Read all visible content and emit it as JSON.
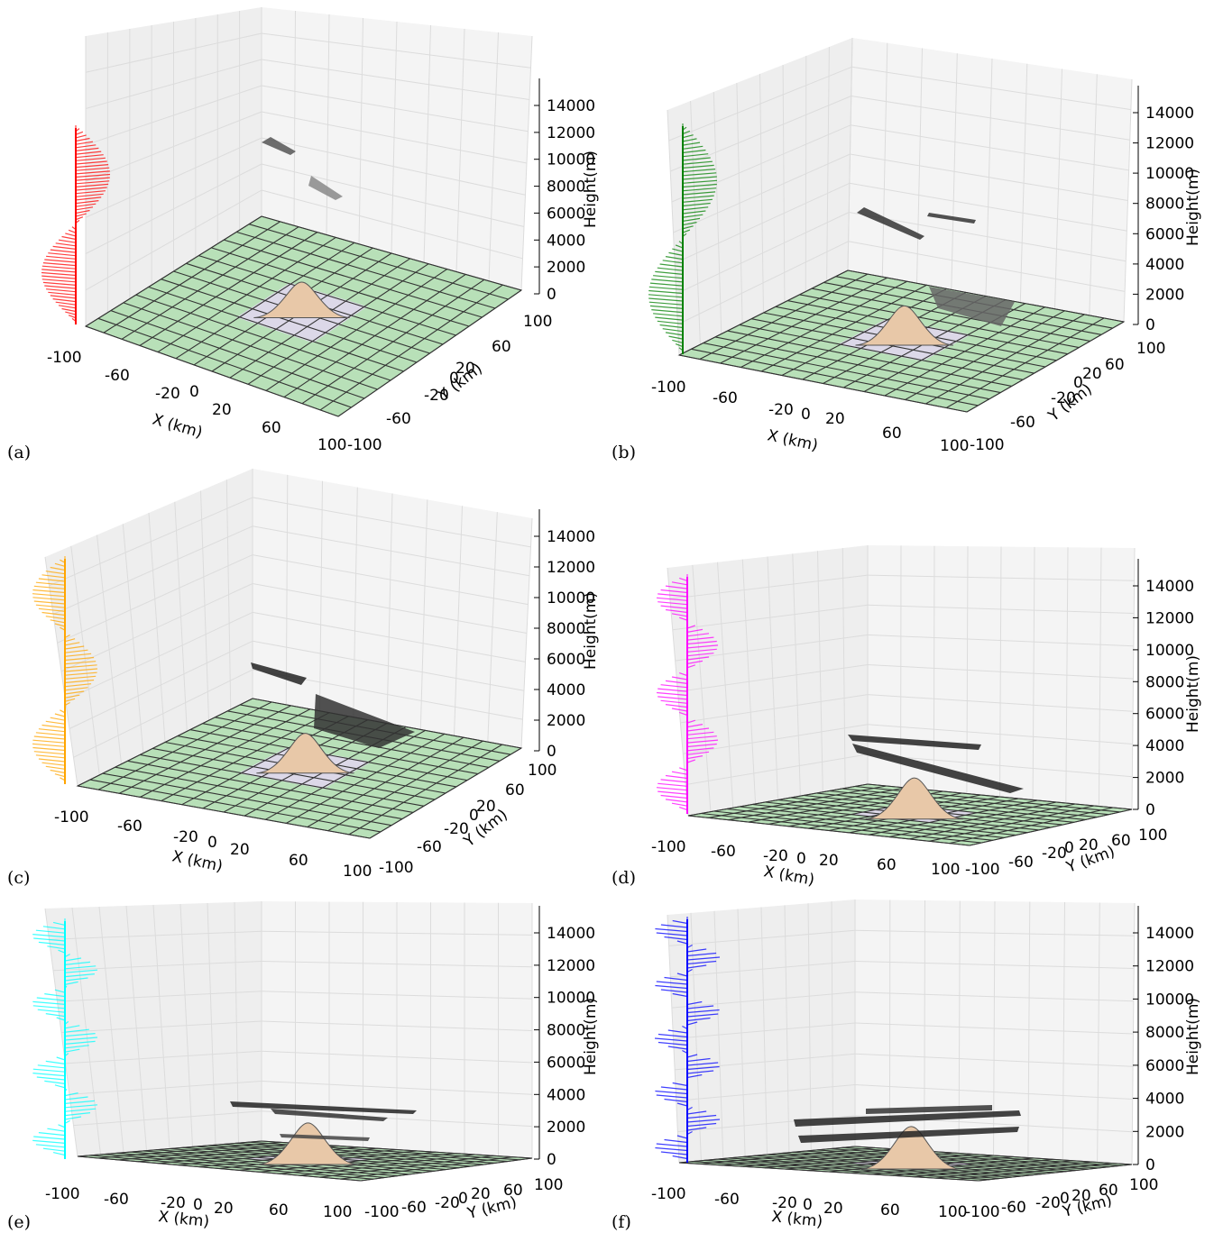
{
  "figure": {
    "panels": [
      {
        "label": "(a)",
        "profile_color": "#ff0000",
        "profile_cycles": 1.0
      },
      {
        "label": "(b)",
        "profile_color": "#008000",
        "profile_cycles": 1.0
      },
      {
        "label": "(c)",
        "profile_color": "#ffa500",
        "profile_cycles": 1.5
      },
      {
        "label": "(d)",
        "profile_color": "#ff00ff",
        "profile_cycles": 2.5
      },
      {
        "label": "(e)",
        "profile_color": "#00ffff",
        "profile_cycles": 3.5
      },
      {
        "label": "(f)",
        "profile_color": "#0000ff",
        "profile_cycles": 4.5
      }
    ]
  },
  "chart_data": {
    "type": "3d-surface-with-trajectories",
    "xlabel": "X (km)",
    "ylabel": "Y (km)",
    "zlabel": "Height(m)",
    "x_ticks": [
      "-100",
      "-60",
      "-20",
      "0",
      "20",
      "60",
      "100"
    ],
    "y_ticks": [
      "-100",
      "-60",
      "-20",
      "0",
      "20",
      "60",
      "100"
    ],
    "z_ticks": [
      "0",
      "2000",
      "4000",
      "6000",
      "8000",
      "10000",
      "12000",
      "14000"
    ],
    "xlim": [
      -100,
      100
    ],
    "ylim": [
      -100,
      100
    ],
    "zlim": [
      0,
      15000
    ],
    "ground_color": "#b8e0b8",
    "mountain_color": "#e8c8a8",
    "trajectory_color": "#1a1a1a"
  }
}
